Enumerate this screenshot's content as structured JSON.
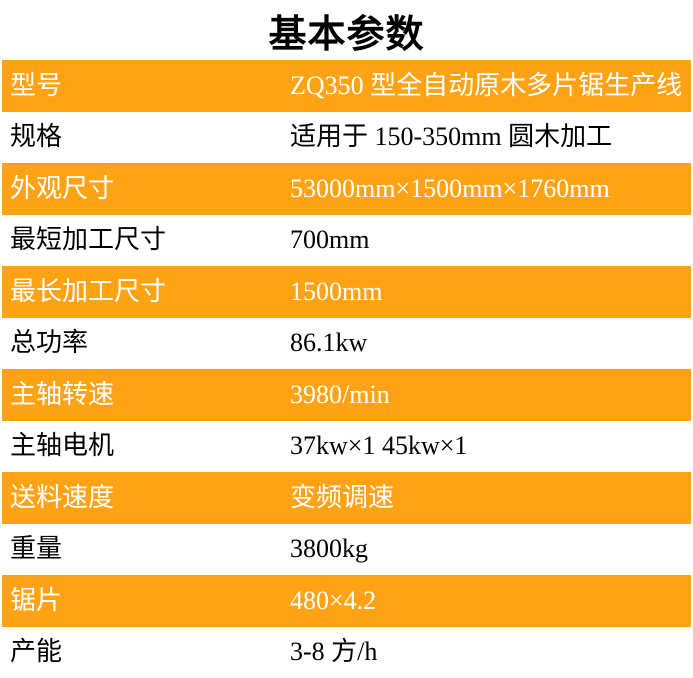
{
  "title": "基本参数",
  "colors": {
    "accent_orange": "#FFA214",
    "text_on_orange": "#FFFFFF",
    "text_on_white": "#000000"
  },
  "table": {
    "rows": [
      {
        "label": "型号",
        "value": "ZQ350 型全自动原木多片锯生产线",
        "highlight": true
      },
      {
        "label": "规格",
        "value": "适用于 150-350mm 圆木加工",
        "highlight": false
      },
      {
        "label": "外观尺寸",
        "value": "53000mm×1500mm×1760mm",
        "highlight": true
      },
      {
        "label": "最短加工尺寸",
        "value": "700mm",
        "highlight": false
      },
      {
        "label": "最长加工尺寸",
        "value": "1500mm",
        "highlight": true
      },
      {
        "label": "总功率",
        "value": "86.1kw",
        "highlight": false
      },
      {
        "label": "主轴转速",
        "value": "3980/min",
        "highlight": true
      },
      {
        "label": "主轴电机",
        "value": "37kw×1 45kw×1",
        "highlight": false
      },
      {
        "label": "送料速度",
        "value": "变频调速",
        "highlight": true
      },
      {
        "label": "重量",
        "value": "3800kg",
        "highlight": false
      },
      {
        "label": "锯片",
        "value": "480×4.2",
        "highlight": true
      },
      {
        "label": "产能",
        "value": "3-8 方/h",
        "highlight": false
      }
    ]
  }
}
